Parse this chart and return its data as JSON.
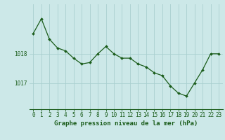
{
  "x": [
    0,
    1,
    2,
    3,
    4,
    5,
    6,
    7,
    8,
    9,
    10,
    11,
    12,
    13,
    14,
    15,
    16,
    17,
    18,
    19,
    20,
    21,
    22,
    23
  ],
  "y": [
    1018.7,
    1019.2,
    1018.5,
    1018.2,
    1018.1,
    1017.85,
    1017.65,
    1017.7,
    1018.0,
    1018.25,
    1018.0,
    1017.85,
    1017.85,
    1017.65,
    1017.55,
    1017.35,
    1017.25,
    1016.9,
    1016.65,
    1016.55,
    1017.0,
    1017.45,
    1018.0,
    1018.0
  ],
  "background_color": "#cce8e8",
  "grid_color": "#aacfcf",
  "line_color": "#1a5c1a",
  "marker_color": "#1a5c1a",
  "xlabel": "Graphe pression niveau de la mer (hPa)",
  "xlabel_fontsize": 6.5,
  "ylabel_ticks": [
    1017,
    1018
  ],
  "ylim": [
    1016.1,
    1019.7
  ],
  "xlim": [
    -0.5,
    23.5
  ],
  "tick_fontsize": 5.5,
  "label_color": "#1a5c1a"
}
